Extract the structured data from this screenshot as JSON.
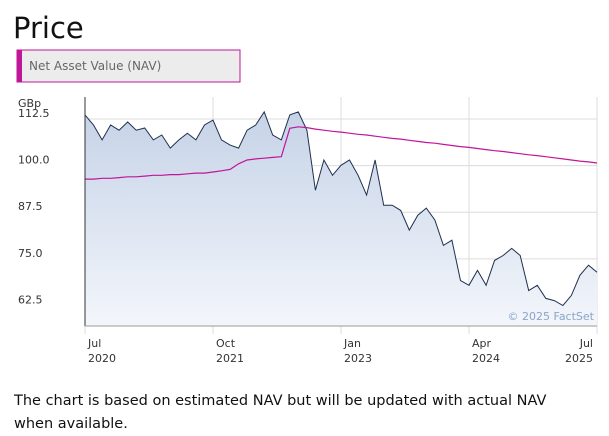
{
  "chart_data": {
    "type": "line",
    "title": "Price",
    "y_label": "GBp",
    "annotation": "© 2025 FactSet",
    "x": [
      "2020-07",
      "2020-08",
      "2020-09",
      "2020-10",
      "2020-11",
      "2020-12",
      "2021-01",
      "2021-02",
      "2021-03",
      "2021-04",
      "2021-05",
      "2021-06",
      "2021-07",
      "2021-08",
      "2021-09",
      "2021-10",
      "2021-11",
      "2021-12",
      "2022-01",
      "2022-02",
      "2022-03",
      "2022-04",
      "2022-05",
      "2022-06",
      "2022-07",
      "2022-08",
      "2022-09",
      "2022-10",
      "2022-11",
      "2022-12",
      "2023-01",
      "2023-02",
      "2023-03",
      "2023-04",
      "2023-05",
      "2023-06",
      "2023-07",
      "2023-08",
      "2023-09",
      "2023-10",
      "2023-11",
      "2023-12",
      "2024-01",
      "2024-02",
      "2024-03",
      "2024-04",
      "2024-05",
      "2024-06",
      "2024-07",
      "2024-08",
      "2024-09",
      "2024-10",
      "2024-11",
      "2024-12",
      "2025-01",
      "2025-02",
      "2025-03",
      "2025-04",
      "2025-05",
      "2025-06",
      "2025-07"
    ],
    "series": [
      {
        "color": "#1f2f4f",
        "fill": true,
        "values": [
          113.6,
          110.9,
          106.9,
          110.9,
          109.5,
          111.7,
          109.5,
          110.1,
          106.9,
          108.2,
          104.7,
          106.9,
          108.7,
          106.9,
          110.9,
          112.2,
          106.9,
          105.5,
          104.7,
          109.5,
          110.9,
          114.4,
          108.2,
          106.9,
          113.6,
          114.4,
          109.5,
          93.4,
          101.5,
          97.4,
          100.1,
          101.5,
          97.4,
          92.1,
          101.5,
          89.4,
          89.4,
          88.0,
          82.7,
          86.7,
          88.6,
          85.4,
          78.6,
          80.0,
          69.2,
          67.9,
          71.9,
          67.9,
          74.6,
          75.9,
          77.8,
          75.9,
          66.5,
          67.9,
          64.4,
          63.8,
          62.5,
          65.2,
          70.6,
          73.3,
          71.4
        ]
      },
      {
        "name": "Net Asset Value (NAV)",
        "color": "#c0169a",
        "fill": false,
        "values": [
          96.4,
          96.4,
          96.6,
          96.6,
          96.8,
          97.0,
          97.0,
          97.2,
          97.4,
          97.4,
          97.6,
          97.6,
          97.8,
          98.0,
          98.0,
          98.3,
          98.6,
          99.0,
          100.5,
          101.5,
          101.8,
          102.0,
          102.2,
          102.4,
          110.0,
          110.4,
          110.2,
          109.8,
          109.5,
          109.2,
          109.0,
          108.7,
          108.4,
          108.2,
          107.9,
          107.6,
          107.3,
          107.1,
          106.8,
          106.5,
          106.2,
          106.0,
          105.7,
          105.4,
          105.1,
          104.9,
          104.6,
          104.3,
          104.0,
          103.8,
          103.5,
          103.2,
          102.9,
          102.7,
          102.4,
          102.1,
          101.8,
          101.5,
          101.2,
          101.0,
          100.7
        ]
      }
    ],
    "xlim": [
      "2020-07",
      "2025-07"
    ],
    "xticks": [
      {
        "value": "2020-07",
        "label": [
          "Jul",
          "2020"
        ]
      },
      {
        "value": "2021-10",
        "label": [
          "Oct",
          "2021"
        ]
      },
      {
        "value": "2023-01",
        "label": [
          "Jan",
          "2023"
        ]
      },
      {
        "value": "2024-04",
        "label": [
          "Apr",
          "2024"
        ]
      },
      {
        "value": "2025-07",
        "label": [
          "Jul",
          "2025"
        ]
      }
    ],
    "ylim": [
      57,
      118.4
    ],
    "yticks": [
      112.5,
      {
        "value": 100,
        "label": "100.0"
      },
      87.5,
      {
        "value": 75,
        "label": "75.0"
      },
      62.5
    ],
    "grid": true
  },
  "footnote": "The chart is based on estimated NAV but will be updated with actual NAV when available."
}
